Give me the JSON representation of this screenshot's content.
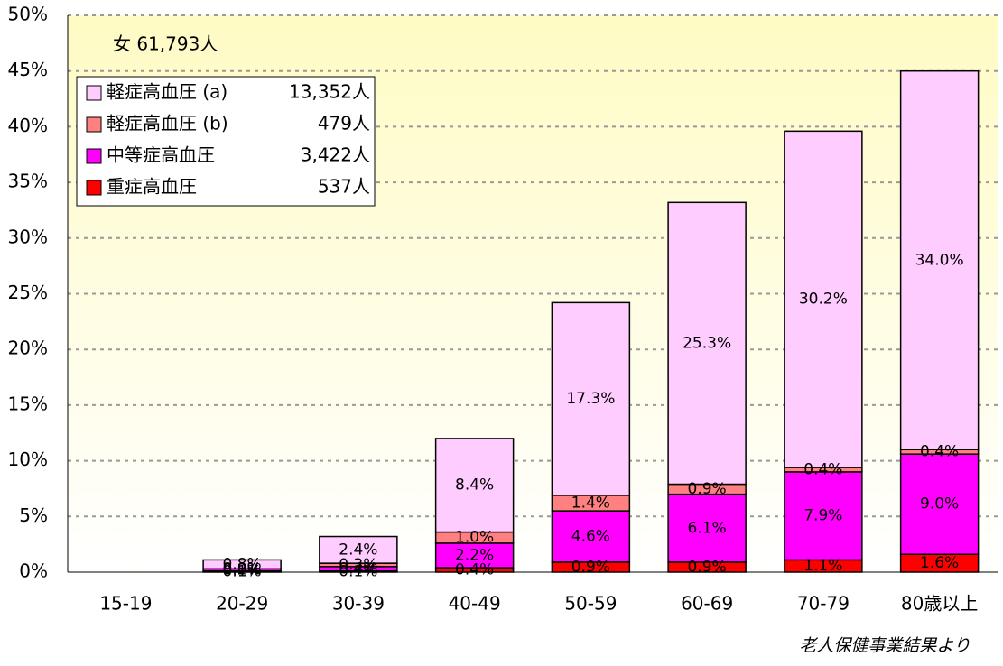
{
  "chart_data": {
    "type": "stacked_bar",
    "title": "女 61,793人",
    "source": "老人保健事業結果より",
    "categories": [
      "15-19",
      "20-29",
      "30-39",
      "40-49",
      "50-59",
      "60-69",
      "70-79",
      "80歳以上"
    ],
    "series": [
      {
        "name": "重症高血圧",
        "count": "537人",
        "color": "#ff0000",
        "values": [
          null,
          0.1,
          0.1,
          0.4,
          0.9,
          0.9,
          1.1,
          1.6
        ],
        "value_labels": [
          null,
          "0.1%",
          "0.1%",
          "0.4%",
          "0.9%",
          "0.9%",
          "1.1%",
          "1.6%"
        ]
      },
      {
        "name": "中等症高血圧",
        "count": "3,422人",
        "color": "#ff00ff",
        "values": [
          null,
          0.2,
          0.4,
          2.2,
          4.6,
          6.1,
          7.9,
          9.0
        ],
        "value_labels": [
          null,
          "0.2%",
          "0.4%",
          "2.2%",
          "4.6%",
          "6.1%",
          "7.9%",
          "9.0%"
        ]
      },
      {
        "name": "軽症高血圧 (b)",
        "count": "479人",
        "color": "#ff8080",
        "values": [
          null,
          0.0,
          0.3,
          1.0,
          1.4,
          0.9,
          0.4,
          0.4
        ],
        "value_labels": [
          null,
          "0.0%",
          "0.3%",
          "1.0%",
          "1.4%",
          "0.9%",
          "0.4%",
          "0.4%"
        ]
      },
      {
        "name": "軽症高血圧 (a)",
        "count": "13,352人",
        "color": "#ffccff",
        "values": [
          null,
          0.8,
          2.4,
          8.4,
          17.3,
          25.3,
          30.2,
          34.0
        ],
        "value_labels": [
          null,
          "0.8%",
          "2.4%",
          "8.4%",
          "17.3%",
          "25.3%",
          "30.2%",
          "34.0%"
        ]
      }
    ],
    "ylim": [
      0,
      50
    ],
    "yticks": [
      {
        "value": 0,
        "label": "0%"
      },
      {
        "value": 5,
        "label": "5%"
      },
      {
        "value": 10,
        "label": "10%"
      },
      {
        "value": 15,
        "label": "15%"
      },
      {
        "value": 20,
        "label": "20%"
      },
      {
        "value": 25,
        "label": "25%"
      },
      {
        "value": 30,
        "label": "30%"
      },
      {
        "value": 35,
        "label": "35%"
      },
      {
        "value": 40,
        "label": "40%"
      },
      {
        "value": 45,
        "label": "45%"
      },
      {
        "value": 50,
        "label": "50%"
      }
    ],
    "grid": true,
    "legend": "upper left"
  }
}
